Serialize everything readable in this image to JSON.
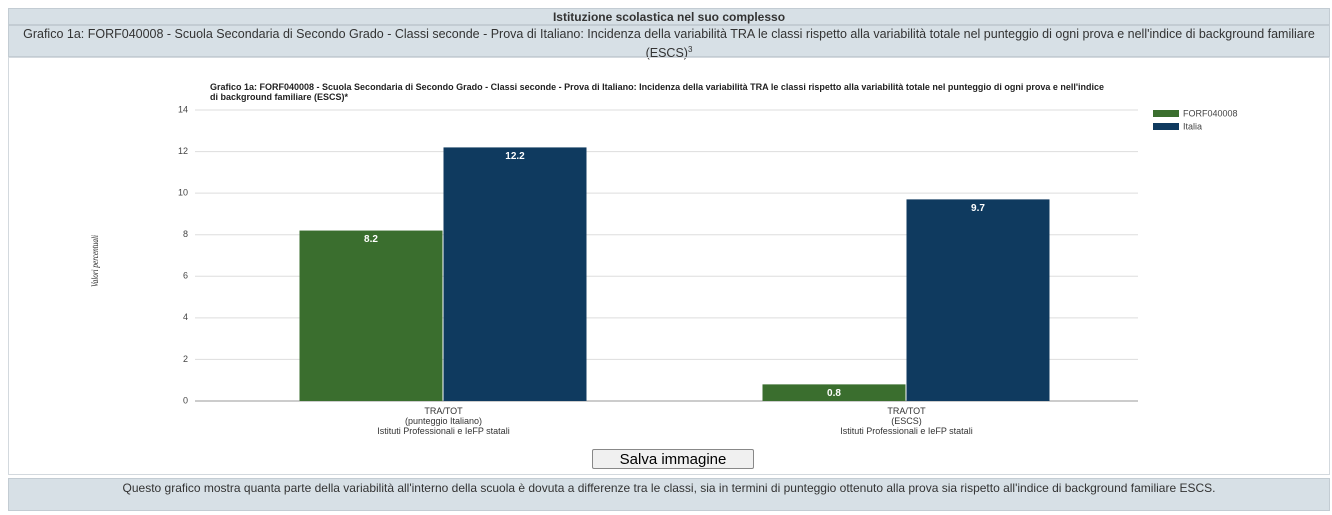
{
  "header": {
    "title": "Istituzione scolastica nel suo complesso",
    "subtitle": "Grafico 1a: FORF040008 - Scuola Secondaria di Secondo Grado - Classi seconde - Prova di Italiano: Incidenza della variabilità TRA le classi rispetto alla variabilità totale nel punteggio di ogni prova e nell'indice di background familiare (ESCS)",
    "subtitle_note": "3"
  },
  "chart_data": {
    "type": "bar",
    "title": "Grafico 1a: FORF040008 - Scuola Secondaria di Secondo Grado - Classi seconde - Prova di Italiano: Incidenza della variabilità TRA le classi rispetto alla variabilità totale nel punteggio di ogni prova e nell'indice di background familiare (ESCS)*",
    "y_label": "Valori percentuali",
    "categories": [
      "TRA/TOT\n(punteggio Italiano)\nIstituti Professionali e IeFP statali",
      "TRA/TOT\n(ESCS)\nIstituti Professionali e IeFP statali"
    ],
    "series": [
      {
        "name": "FORF040008",
        "color": "#3a6e2e",
        "values": [
          8.2,
          0.8
        ]
      },
      {
        "name": "Italia",
        "color": "#0f3a5f",
        "values": [
          12.2,
          9.7
        ]
      }
    ],
    "ylim": [
      0,
      14
    ],
    "yticks": [
      0,
      2,
      4,
      6,
      8,
      10,
      12,
      14
    ],
    "grid": true,
    "legend": "top-right"
  },
  "button": "Salva immagine",
  "footer": "Questo grafico mostra quanta parte della variabilità all'interno della scuola è dovuta a differenze tra le classi, sia in termini di punteggio ottenuto alla prova sia rispetto all'indice di background familiare ESCS."
}
